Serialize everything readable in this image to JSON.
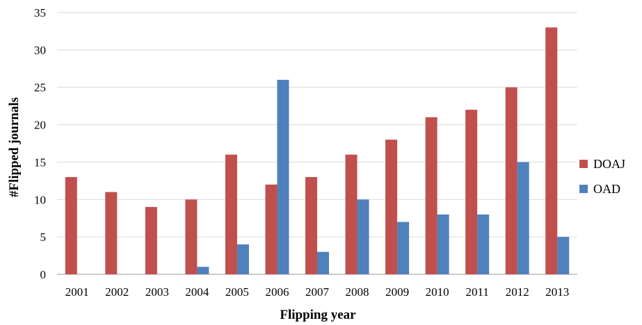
{
  "chart_data": {
    "type": "bar",
    "title": "",
    "xlabel": "Flipping year",
    "ylabel": "#Flipped journals",
    "ylim": [
      0,
      35
    ],
    "yticks": [
      "0",
      "5",
      "10",
      "15",
      "20",
      "25",
      "30",
      "35"
    ],
    "categories": [
      "2001",
      "2002",
      "2003",
      "2004",
      "2005",
      "2006",
      "2007",
      "2008",
      "2009",
      "2010",
      "2011",
      "2012",
      "2013"
    ],
    "series": [
      {
        "name": "DOAJ",
        "color": "#c0504d",
        "values": [
          13,
          11,
          9,
          10,
          16,
          12,
          13,
          16,
          18,
          21,
          22,
          25,
          33
        ]
      },
      {
        "name": "OAD",
        "color": "#4f81bd",
        "values": [
          0,
          0,
          0,
          1,
          4,
          26,
          3,
          10,
          7,
          8,
          8,
          15,
          5
        ]
      }
    ],
    "grid": true,
    "legend_position": "right"
  }
}
